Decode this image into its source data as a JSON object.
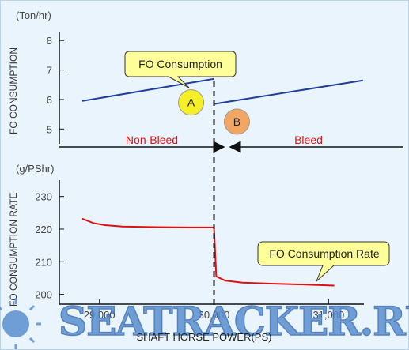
{
  "chart_data": [
    {
      "type": "line",
      "ylabel": "FO CONSUMPTION",
      "unit": "(Ton/hr)",
      "yticks": [
        5,
        6,
        7,
        8
      ],
      "ylim": [
        4.5,
        8.3
      ],
      "xlim": [
        28650,
        31550
      ],
      "series": [
        {
          "name": "",
          "color": "#1f3f99",
          "x": [
            28850,
            30000
          ],
          "y": [
            5.95,
            6.7
          ]
        },
        {
          "name": "",
          "color": "#1f3f99",
          "x": [
            30000,
            31300
          ],
          "y": [
            5.85,
            6.65
          ]
        }
      ],
      "regions": {
        "left": "Non-Bleed",
        "right": "Bleed"
      },
      "callout": "FO Consumption",
      "markers": [
        {
          "label": "A",
          "color": "#f5ef2a",
          "x": 29800,
          "y": 5.9
        },
        {
          "label": "B",
          "color": "#f2a664",
          "x": 30200,
          "y": 5.25
        }
      ]
    },
    {
      "type": "line",
      "ylabel": "FO CONSUMPTION RATE",
      "unit": "(g/PShr)",
      "yticks": [
        200,
        210,
        220,
        230
      ],
      "ylim": [
        197,
        235
      ],
      "xlim": [
        28650,
        31550
      ],
      "xticks": [
        "29,000",
        "30,000",
        "31,000"
      ],
      "xtick_values": [
        29000,
        30000,
        31000
      ],
      "xlabel": "SHAFT HORSE POWER(PS)",
      "series": [
        {
          "name": "",
          "color": "#dd1111",
          "x": [
            28850,
            28950,
            29050,
            29200,
            29500,
            29800,
            30000
          ],
          "y": [
            223.2,
            221.8,
            221.2,
            220.8,
            220.6,
            220.5,
            220.5
          ]
        },
        {
          "name": "",
          "color": "#dd1111",
          "x": [
            30000,
            30020,
            30100,
            30250,
            30500,
            30800,
            31050
          ],
          "y": [
            220.5,
            205.5,
            204.2,
            203.6,
            203.3,
            203.0,
            202.7
          ]
        }
      ],
      "callout": "FO Consumption Rate"
    }
  ],
  "watermark": "SEATRACKER.RU"
}
